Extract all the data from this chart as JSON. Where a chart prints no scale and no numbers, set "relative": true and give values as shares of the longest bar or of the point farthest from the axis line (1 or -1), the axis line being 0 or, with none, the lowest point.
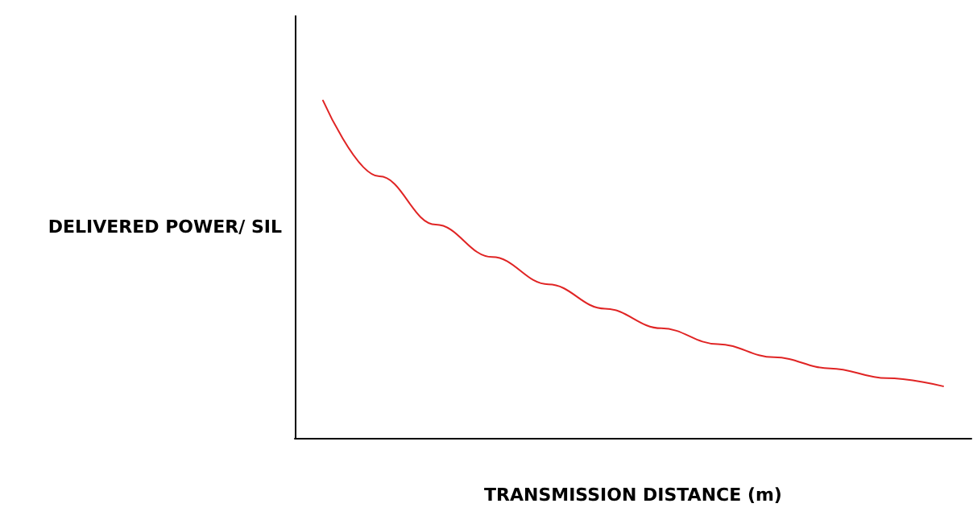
{
  "chart_data": {
    "type": "line",
    "relative": true,
    "xlabel": "TRANSMISSION DISTANCE (m)",
    "ylabel": "DELIVERED POWER/ SIL",
    "categories": [
      null,
      null,
      null,
      null,
      null,
      null,
      null,
      null,
      null,
      null,
      null,
      null
    ],
    "series": [
      {
        "color": "#e02424",
        "values": [
          1,
          0.775,
          0.632,
          0.536,
          0.455,
          0.383,
          0.325,
          0.278,
          0.239,
          0.206,
          0.177,
          0.153
        ]
      }
    ],
    "grid": false,
    "marker": "none",
    "line_style": "solid"
  }
}
